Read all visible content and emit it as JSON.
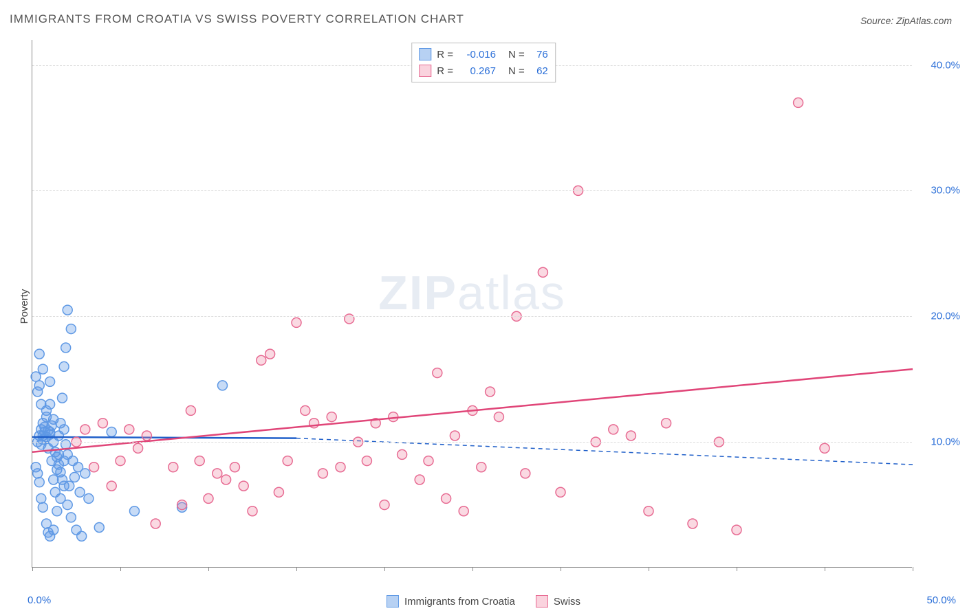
{
  "title": "IMMIGRANTS FROM CROATIA VS SWISS POVERTY CORRELATION CHART",
  "source_label": "Source: ZipAtlas.com",
  "ylabel": "Poverty",
  "watermark_bold": "ZIP",
  "watermark_light": "atlas",
  "chart": {
    "type": "scatter",
    "background_color": "#ffffff",
    "grid_color": "#dddddd",
    "axis_color": "#888888",
    "text_color": "#555555",
    "value_color": "#2b6fd8",
    "xlim": [
      0,
      50
    ],
    "ylim": [
      0,
      42
    ],
    "ytick_positions": [
      10,
      20,
      30,
      40
    ],
    "ytick_labels": [
      "10.0%",
      "20.0%",
      "30.0%",
      "40.0%"
    ],
    "xtick_positions": [
      0,
      5,
      10,
      15,
      20,
      25,
      30,
      35,
      40,
      45,
      50
    ],
    "xlim_labels": [
      "0.0%",
      "50.0%"
    ],
    "marker_radius": 7,
    "marker_stroke_width": 1.5,
    "trend_line_width": 2.5,
    "trend_dash_width": 1.5
  },
  "series": [
    {
      "id": "croatia",
      "label": "Immigrants from Croatia",
      "color_fill": "rgba(95,153,229,0.35)",
      "color_stroke": "#5f99e5",
      "trend_color": "#1f5fc9",
      "R": "-0.016",
      "N": "76",
      "trend": {
        "x1": 0,
        "y1": 10.4,
        "x2_solid": 15,
        "y2_solid": 10.3,
        "x2": 50,
        "y2": 8.2
      },
      "points": [
        [
          0.2,
          15.2
        ],
        [
          0.3,
          14.0
        ],
        [
          0.4,
          14.5
        ],
        [
          0.5,
          13.0
        ],
        [
          0.6,
          10.5
        ],
        [
          0.7,
          11.2
        ],
        [
          0.8,
          12.0
        ],
        [
          0.9,
          9.5
        ],
        [
          1.0,
          10.8
        ],
        [
          1.1,
          8.5
        ],
        [
          1.2,
          7.0
        ],
        [
          1.3,
          6.0
        ],
        [
          1.4,
          7.8
        ],
        [
          1.5,
          9.0
        ],
        [
          1.6,
          11.5
        ],
        [
          1.7,
          13.5
        ],
        [
          1.8,
          16.0
        ],
        [
          1.9,
          17.5
        ],
        [
          2.0,
          20.5
        ],
        [
          2.2,
          19.0
        ],
        [
          0.5,
          5.5
        ],
        [
          0.6,
          4.8
        ],
        [
          0.8,
          3.5
        ],
        [
          0.9,
          2.8
        ],
        [
          1.0,
          2.5
        ],
        [
          1.2,
          3.0
        ],
        [
          1.4,
          4.5
        ],
        [
          1.6,
          5.5
        ],
        [
          1.8,
          6.5
        ],
        [
          2.0,
          5.0
        ],
        [
          2.2,
          4.0
        ],
        [
          2.5,
          3.0
        ],
        [
          2.8,
          2.5
        ],
        [
          0.3,
          10.0
        ],
        [
          0.4,
          10.5
        ],
        [
          0.5,
          11.0
        ],
        [
          0.6,
          11.5
        ],
        [
          0.8,
          12.5
        ],
        [
          1.0,
          13.0
        ],
        [
          1.2,
          10.0
        ],
        [
          1.5,
          10.5
        ],
        [
          1.8,
          11.0
        ],
        [
          2.0,
          9.0
        ],
        [
          2.3,
          8.5
        ],
        [
          2.6,
          8.0
        ],
        [
          3.0,
          7.5
        ],
        [
          0.2,
          8.0
        ],
        [
          0.3,
          7.5
        ],
        [
          0.4,
          6.8
        ],
        [
          0.5,
          9.8
        ],
        [
          0.6,
          10.2
        ],
        [
          0.7,
          10.8
        ],
        [
          0.8,
          10.4
        ],
        [
          0.9,
          10.9
        ],
        [
          1.0,
          10.6
        ],
        [
          1.1,
          11.3
        ],
        [
          1.2,
          11.8
        ],
        [
          1.3,
          9.2
        ],
        [
          1.4,
          8.8
        ],
        [
          1.5,
          8.2
        ],
        [
          1.6,
          7.6
        ],
        [
          1.7,
          7.0
        ],
        [
          1.8,
          8.5
        ],
        [
          1.9,
          9.8
        ],
        [
          2.1,
          6.5
        ],
        [
          2.4,
          7.2
        ],
        [
          2.7,
          6.0
        ],
        [
          3.2,
          5.5
        ],
        [
          3.8,
          3.2
        ],
        [
          4.5,
          10.8
        ],
        [
          5.8,
          4.5
        ],
        [
          8.5,
          4.8
        ],
        [
          10.8,
          14.5
        ],
        [
          0.4,
          17.0
        ],
        [
          0.6,
          15.8
        ],
        [
          1.0,
          14.8
        ]
      ]
    },
    {
      "id": "swiss",
      "label": "Swiss",
      "color_fill": "rgba(240,128,160,0.30)",
      "color_stroke": "#e76a92",
      "trend_color": "#e04578",
      "R": "0.267",
      "N": "62",
      "trend": {
        "x1": 0,
        "y1": 9.2,
        "x2_solid": 50,
        "y2_solid": 15.8,
        "x2": 50,
        "y2": 15.8
      },
      "points": [
        [
          2.5,
          10.0
        ],
        [
          3.0,
          11.0
        ],
        [
          4.0,
          11.5
        ],
        [
          5.0,
          8.5
        ],
        [
          5.5,
          11.0
        ],
        [
          6.0,
          9.5
        ],
        [
          6.5,
          10.5
        ],
        [
          7.0,
          3.5
        ],
        [
          8.0,
          8.0
        ],
        [
          8.5,
          5.0
        ],
        [
          9.0,
          12.5
        ],
        [
          9.5,
          8.5
        ],
        [
          10.0,
          5.5
        ],
        [
          10.5,
          7.5
        ],
        [
          11.0,
          7.0
        ],
        [
          11.5,
          8.0
        ],
        [
          12.0,
          6.5
        ],
        [
          12.5,
          4.5
        ],
        [
          13.0,
          16.5
        ],
        [
          13.5,
          17.0
        ],
        [
          14.0,
          6.0
        ],
        [
          14.5,
          8.5
        ],
        [
          15.0,
          19.5
        ],
        [
          15.5,
          12.5
        ],
        [
          16.0,
          11.5
        ],
        [
          16.5,
          7.5
        ],
        [
          17.0,
          12.0
        ],
        [
          17.5,
          8.0
        ],
        [
          18.0,
          19.8
        ],
        [
          18.5,
          10.0
        ],
        [
          19.0,
          8.5
        ],
        [
          19.5,
          11.5
        ],
        [
          20.0,
          5.0
        ],
        [
          20.5,
          12.0
        ],
        [
          21.0,
          9.0
        ],
        [
          22.0,
          7.0
        ],
        [
          22.5,
          8.5
        ],
        [
          23.0,
          15.5
        ],
        [
          23.5,
          5.5
        ],
        [
          24.0,
          10.5
        ],
        [
          24.5,
          4.5
        ],
        [
          25.0,
          12.5
        ],
        [
          25.5,
          8.0
        ],
        [
          26.0,
          14.0
        ],
        [
          26.5,
          12.0
        ],
        [
          27.5,
          20.0
        ],
        [
          28.0,
          7.5
        ],
        [
          29.0,
          23.5
        ],
        [
          30.0,
          6.0
        ],
        [
          31.0,
          30.0
        ],
        [
          32.0,
          10.0
        ],
        [
          33.0,
          11.0
        ],
        [
          34.0,
          10.5
        ],
        [
          35.0,
          4.5
        ],
        [
          36.0,
          11.5
        ],
        [
          37.5,
          3.5
        ],
        [
          39.0,
          10.0
        ],
        [
          40.0,
          3.0
        ],
        [
          43.5,
          37.0
        ],
        [
          45.0,
          9.5
        ],
        [
          3.5,
          8.0
        ],
        [
          4.5,
          6.5
        ]
      ]
    }
  ],
  "stats_labels": {
    "R": "R =",
    "N": "N ="
  },
  "legend": {
    "items": [
      {
        "ref": "croatia"
      },
      {
        "ref": "swiss"
      }
    ]
  }
}
